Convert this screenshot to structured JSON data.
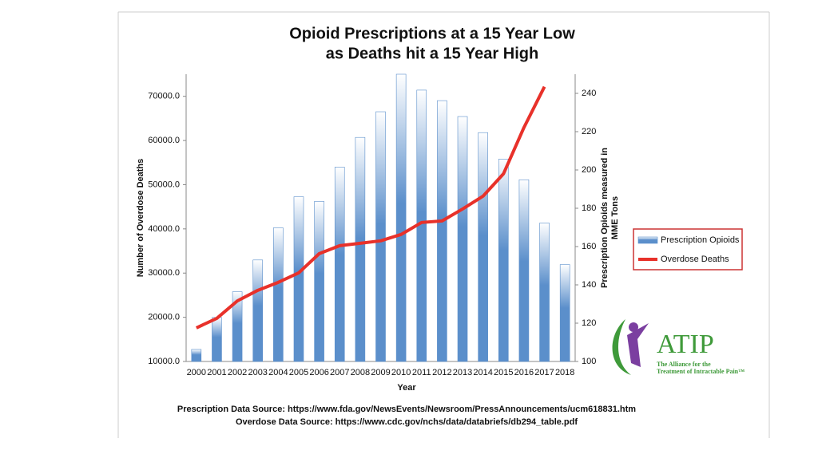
{
  "chart_data": {
    "type": "bar_line",
    "title": [
      "Opioid Prescriptions at a 15 Year Low",
      "as Deaths hit a 15 Year High"
    ],
    "x_label": "Year",
    "y_label": "Number of Overdose Deaths",
    "y2_label": [
      "Prescription Opioids measured in",
      "MME Tons"
    ],
    "categories": [
      "2000",
      "2001",
      "2002",
      "2003",
      "2004",
      "2005",
      "2006",
      "2007",
      "2008",
      "2009",
      "2010",
      "2011",
      "2012",
      "2013",
      "2014",
      "2015",
      "2016",
      "2017",
      "2018"
    ],
    "series": [
      {
        "name": "Prescription Opioids",
        "type": "bar",
        "axis": "y2",
        "color": "#5b8fcb",
        "values": [
          106.3,
          123,
          136.4,
          153,
          169.8,
          186,
          183.6,
          201.5,
          217,
          230.4,
          250,
          241.7,
          236.2,
          227.9,
          219.5,
          205.7,
          194.9,
          172.3,
          150.6
        ]
      },
      {
        "name": "Overdose Deaths",
        "type": "line",
        "axis": "y",
        "color": "#e8312a",
        "values": [
          17600,
          19760,
          23700,
          26100,
          27900,
          30060,
          34400,
          36200,
          36750,
          37300,
          38740,
          41450,
          41800,
          44500,
          47400,
          52470,
          62950,
          72170,
          null
        ]
      }
    ],
    "ylim": [
      10000,
      75000
    ],
    "yticks": [
      {
        "value": 10000,
        "label": "10000.0"
      },
      {
        "value": 20000,
        "label": "20000.0"
      },
      {
        "value": 30000,
        "label": "30000.0"
      },
      {
        "value": 40000,
        "label": "40000.0"
      },
      {
        "value": 50000,
        "label": "50000.0"
      },
      {
        "value": 60000,
        "label": "60000.0"
      },
      {
        "value": 70000,
        "label": "70000.0"
      }
    ],
    "y2lim": [
      100,
      250
    ],
    "y2ticks": [
      100,
      120,
      140,
      160,
      180,
      200,
      220,
      240
    ],
    "legend": "right",
    "sources": [
      "Prescription Data Source: https://www.fda.gov/NewsEvents/Newsroom/PressAnnouncements/ucm618831.htm",
      "Overdose Data Source:  https://www.cdc.gov/nchs/data/databriefs/db294_table.pdf"
    ]
  },
  "logo": {
    "name": "ATIP",
    "tagline": [
      "The Alliance for the",
      "Treatment of Intractable Pain™"
    ]
  }
}
